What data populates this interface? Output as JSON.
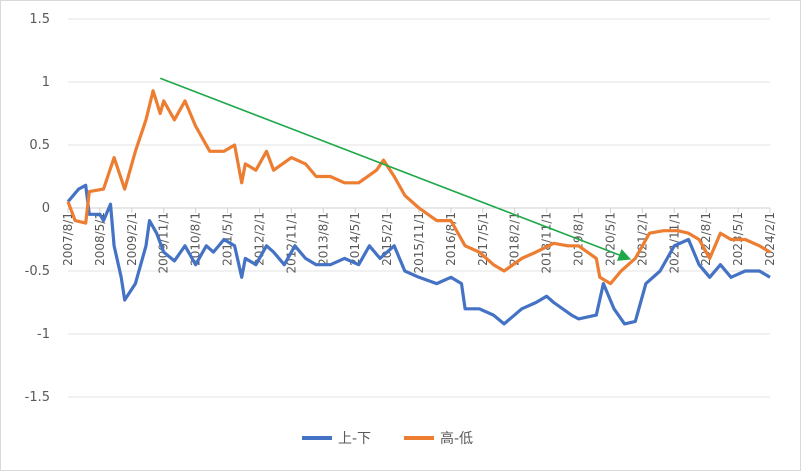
{
  "chart_data": {
    "type": "line",
    "title": "",
    "xlabel": "",
    "ylabel": "",
    "ylim": [
      -1.5,
      1.5
    ],
    "yticks": [
      "1.5",
      "1",
      "0.5",
      "0",
      "-0.5",
      "-1",
      "-1.5"
    ],
    "x_unit": "months since 2007/8/1",
    "xlim": [
      0,
      198
    ],
    "xtick_labels": [
      "2007/8/1",
      "2008/5/1",
      "2009/2/1",
      "2009/11/1",
      "2010/8/1",
      "2011/5/1",
      "2012/2/1",
      "2012/11/1",
      "2013/8/1",
      "2014/5/1",
      "2015/2/1",
      "2015/11/1",
      "2016/8/1",
      "2017/5/1",
      "2018/2/1",
      "2018/11/1",
      "2019/8/1",
      "2020/5/1",
      "2021/2/1",
      "2021/11/1",
      "2022/8/1",
      "2023/5/1",
      "2024/2/1"
    ],
    "grid": true,
    "legend_position": "bottom",
    "series": [
      {
        "name": "上-下",
        "color": "#4472C4",
        "x": [
          0,
          3,
          5,
          6,
          9,
          10,
          12,
          13,
          15,
          16,
          19,
          22,
          23,
          25,
          27,
          30,
          33,
          36,
          39,
          41,
          44,
          47,
          49,
          50,
          53,
          56,
          58,
          61,
          64,
          67,
          70,
          74,
          78,
          82,
          85,
          88,
          92,
          95,
          99,
          104,
          108,
          111,
          112,
          116,
          120,
          123,
          128,
          132,
          135,
          137,
          142,
          144,
          149,
          151,
          154,
          157,
          160,
          163,
          167,
          171,
          175,
          178,
          181,
          184,
          187,
          191,
          195,
          198
        ],
        "y": [
          0.05,
          0.15,
          0.18,
          -0.05,
          -0.05,
          -0.1,
          0.03,
          -0.3,
          -0.55,
          -0.73,
          -0.6,
          -0.3,
          -0.1,
          -0.2,
          -0.35,
          -0.42,
          -0.3,
          -0.45,
          -0.3,
          -0.35,
          -0.25,
          -0.3,
          -0.55,
          -0.4,
          -0.45,
          -0.3,
          -0.35,
          -0.45,
          -0.3,
          -0.4,
          -0.45,
          -0.45,
          -0.4,
          -0.45,
          -0.3,
          -0.4,
          -0.3,
          -0.5,
          -0.55,
          -0.6,
          -0.55,
          -0.6,
          -0.8,
          -0.8,
          -0.85,
          -0.92,
          -0.8,
          -0.75,
          -0.7,
          -0.75,
          -0.85,
          -0.88,
          -0.85,
          -0.6,
          -0.8,
          -0.92,
          -0.9,
          -0.6,
          -0.5,
          -0.3,
          -0.25,
          -0.45,
          -0.55,
          -0.45,
          -0.55,
          -0.5,
          -0.5,
          -0.55
        ]
      },
      {
        "name": "高-低",
        "color": "#ED7D31",
        "x": [
          0,
          2,
          5,
          6,
          10,
          13,
          16,
          19,
          22,
          24,
          26,
          27,
          30,
          33,
          36,
          40,
          44,
          47,
          49,
          50,
          53,
          56,
          58,
          63,
          67,
          70,
          74,
          78,
          82,
          87,
          89,
          92,
          95,
          99,
          104,
          108,
          112,
          116,
          120,
          123,
          128,
          132,
          137,
          141,
          144,
          149,
          150,
          153,
          156,
          160,
          164,
          168,
          172,
          175,
          178,
          181,
          184,
          187,
          191,
          195,
          198
        ],
        "y": [
          0.05,
          -0.1,
          -0.12,
          0.13,
          0.15,
          0.4,
          0.15,
          0.45,
          0.7,
          0.93,
          0.75,
          0.85,
          0.7,
          0.85,
          0.65,
          0.45,
          0.45,
          0.5,
          0.2,
          0.35,
          0.3,
          0.45,
          0.3,
          0.4,
          0.35,
          0.25,
          0.25,
          0.2,
          0.2,
          0.3,
          0.38,
          0.25,
          0.1,
          0.0,
          -0.1,
          -0.1,
          -0.3,
          -0.35,
          -0.45,
          -0.5,
          -0.4,
          -0.35,
          -0.28,
          -0.3,
          -0.3,
          -0.4,
          -0.55,
          -0.6,
          -0.5,
          -0.4,
          -0.2,
          -0.18,
          -0.18,
          -0.2,
          -0.25,
          -0.4,
          -0.2,
          -0.25,
          -0.25,
          -0.3,
          -0.35
        ]
      }
    ],
    "annotations": [
      {
        "type": "arrow",
        "color": "#1FA84A",
        "from": [
          26,
          1.03
        ],
        "to": [
          158,
          -0.4
        ]
      }
    ]
  }
}
